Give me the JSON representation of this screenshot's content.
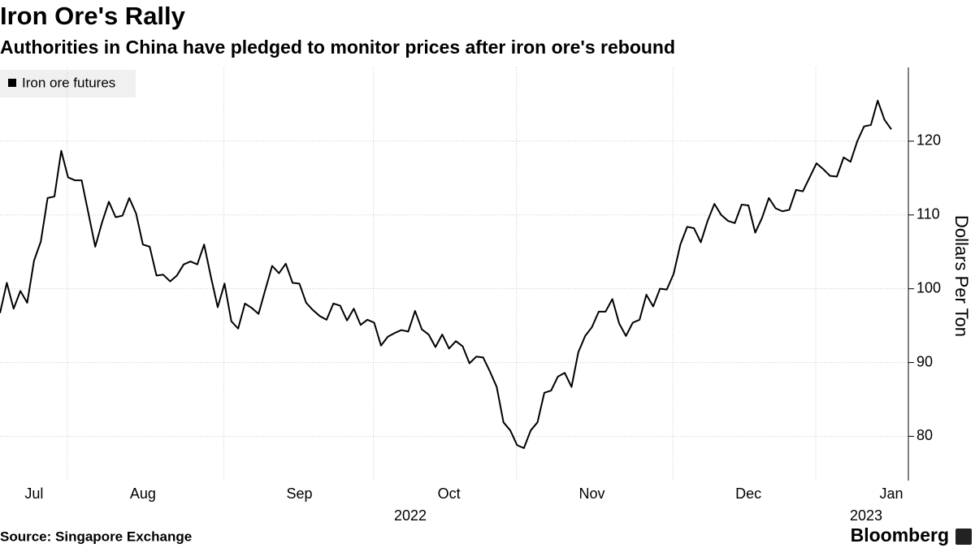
{
  "chart_data": {
    "type": "line",
    "title": "Iron Ore's Rally",
    "subtitle": "Authorities in China have pledged to monitor prices after iron ore's rebound",
    "y_axis_label": "Dollars Per Ton",
    "source": "Source: Singapore Exchange",
    "brand": "Bloomberg",
    "years": [
      "2022",
      "2023"
    ],
    "legend": "upper left",
    "grid": true,
    "ylim": [
      74,
      130
    ],
    "yticks": [
      80,
      90,
      100,
      110,
      120
    ],
    "categories": [
      null,
      null,
      null,
      null,
      null,
      "Jul",
      null,
      null,
      null,
      null,
      null,
      null,
      null,
      null,
      null,
      null,
      null,
      null,
      null,
      null,
      null,
      "Aug",
      null,
      null,
      null,
      null,
      null,
      null,
      null,
      null,
      null,
      null,
      null,
      null,
      null,
      null,
      null,
      null,
      null,
      null,
      null,
      null,
      null,
      null,
      "Sep",
      null,
      null,
      null,
      null,
      null,
      null,
      null,
      null,
      null,
      null,
      null,
      null,
      null,
      null,
      null,
      null,
      null,
      null,
      null,
      null,
      null,
      "Oct",
      null,
      null,
      null,
      null,
      null,
      null,
      null,
      null,
      null,
      null,
      null,
      null,
      null,
      null,
      null,
      null,
      null,
      null,
      null,
      null,
      "Nov",
      null,
      null,
      null,
      null,
      null,
      null,
      null,
      null,
      null,
      null,
      null,
      null,
      null,
      null,
      null,
      null,
      null,
      null,
      null,
      null,
      null,
      null,
      "Dec",
      null,
      null,
      null,
      null,
      null,
      null,
      null,
      null,
      null,
      null,
      null,
      null,
      null,
      null,
      null,
      null,
      null,
      null,
      null,
      null,
      "Jan"
    ],
    "series": [
      {
        "name": "Iron ore futures",
        "color": "#000000",
        "values": [
          96.7,
          100.8,
          97.3,
          99.7,
          98.1,
          103.8,
          106.4,
          112.3,
          112.5,
          118.7,
          115.1,
          114.7,
          114.7,
          110.2,
          105.7,
          109.0,
          111.8,
          109.7,
          109.9,
          112.3,
          110.2,
          106.0,
          105.7,
          101.8,
          101.9,
          101.0,
          101.8,
          103.3,
          103.7,
          103.3,
          106.0,
          101.6,
          97.5,
          100.7,
          95.6,
          94.6,
          98.0,
          97.4,
          96.6,
          99.9,
          103.1,
          102.1,
          103.4,
          100.8,
          100.7,
          98.1,
          97.1,
          96.3,
          95.8,
          98.0,
          97.7,
          95.7,
          97.3,
          95.1,
          95.8,
          95.4,
          92.3,
          93.5,
          94.0,
          94.4,
          94.2,
          97.0,
          94.5,
          93.8,
          92.1,
          93.8,
          91.9,
          92.9,
          92.2,
          89.9,
          90.8,
          90.7,
          88.8,
          86.7,
          81.9,
          80.8,
          78.8,
          78.4,
          80.8,
          81.9,
          85.9,
          86.2,
          88.1,
          88.6,
          86.7,
          91.4,
          93.6,
          94.8,
          96.9,
          96.9,
          98.6,
          95.3,
          93.6,
          95.4,
          95.8,
          99.2,
          97.6,
          100.0,
          99.9,
          102.0,
          106.0,
          108.4,
          108.2,
          106.3,
          109.2,
          111.5,
          110.0,
          109.2,
          108.9,
          111.4,
          111.3,
          107.6,
          109.6,
          112.3,
          110.9,
          110.5,
          110.7,
          113.4,
          113.2,
          115.1,
          117.0,
          116.2,
          115.3,
          115.2,
          117.8,
          117.2,
          120.0,
          122.0,
          122.2,
          125.5,
          122.9,
          121.6
        ]
      }
    ]
  }
}
